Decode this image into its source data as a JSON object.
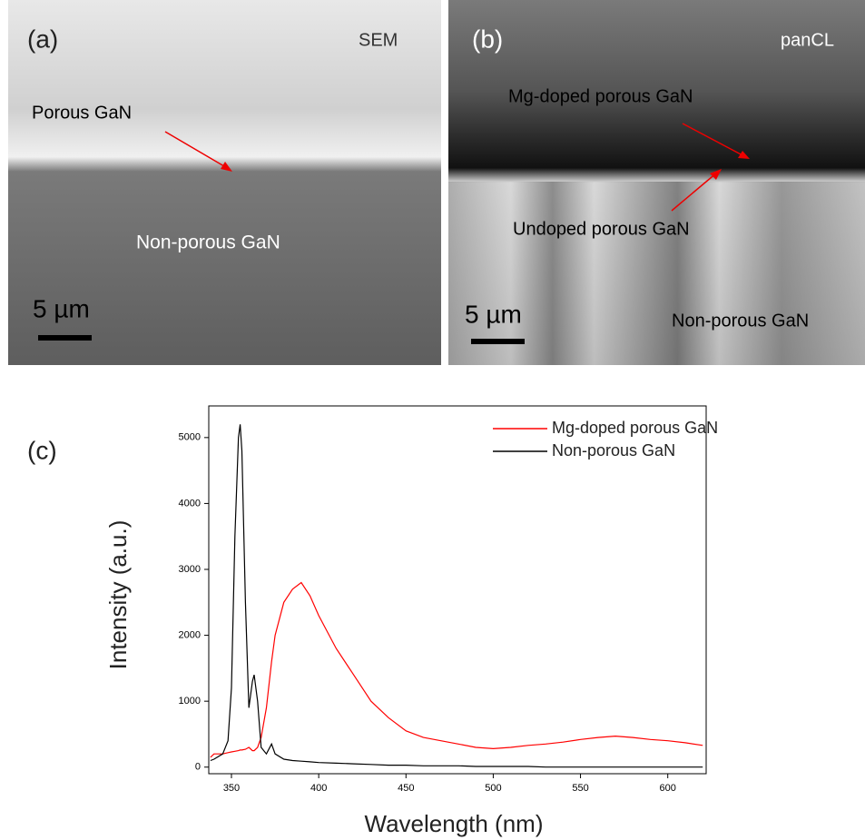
{
  "panels": [
    {
      "label": "(a)",
      "mode": "SEM",
      "annotations": [
        "Porous GaN",
        "Non-porous GaN"
      ],
      "scale_bar": "5 µm"
    },
    {
      "label": "(b)",
      "mode": "panCL",
      "annotations": [
        "Mg-doped porous GaN",
        "Undoped porous GaN",
        "Non-porous GaN"
      ],
      "scale_bar": "5 µm"
    }
  ],
  "chart_data": {
    "type": "line",
    "panel_label": "(c)",
    "x_label": "Wavelength (nm)",
    "y_label": "Intensity (a.u.)",
    "xlim": [
      337,
      622
    ],
    "ylim": [
      -100,
      5480
    ],
    "xticks": [
      350,
      400,
      450,
      500,
      550,
      600
    ],
    "yticks": [
      0,
      1000,
      2000,
      3000,
      4000,
      5000
    ],
    "legend": "upper right",
    "x": [
      338,
      340,
      345,
      348,
      350,
      352,
      354,
      355,
      356,
      358,
      360,
      362,
      363,
      365,
      367,
      370,
      373,
      375,
      380,
      385,
      390,
      395,
      400,
      410,
      420,
      430,
      440,
      450,
      460,
      470,
      480,
      490,
      500,
      510,
      520,
      530,
      540,
      550,
      560,
      570,
      580,
      590,
      600,
      610,
      620
    ],
    "series": [
      {
        "name": "Mg-doped porous GaN",
        "color": "#ff0000",
        "values": [
          150,
          200,
          200,
          220,
          230,
          240,
          250,
          260,
          260,
          270,
          300,
          250,
          250,
          300,
          450,
          900,
          1600,
          2000,
          2500,
          2700,
          2800,
          2600,
          2300,
          1800,
          1400,
          1000,
          750,
          550,
          450,
          400,
          350,
          300,
          280,
          300,
          330,
          350,
          380,
          420,
          450,
          470,
          450,
          420,
          400,
          370,
          330
        ]
      },
      {
        "name": "Non-porous GaN",
        "color": "#000000",
        "values": [
          100,
          120,
          200,
          400,
          1200,
          3500,
          5000,
          5200,
          4800,
          2500,
          900,
          1300,
          1400,
          1000,
          300,
          200,
          350,
          200,
          120,
          100,
          90,
          80,
          70,
          60,
          50,
          40,
          30,
          30,
          20,
          20,
          20,
          10,
          10,
          10,
          10,
          0,
          0,
          0,
          0,
          0,
          0,
          0,
          0,
          0,
          0
        ]
      }
    ]
  }
}
